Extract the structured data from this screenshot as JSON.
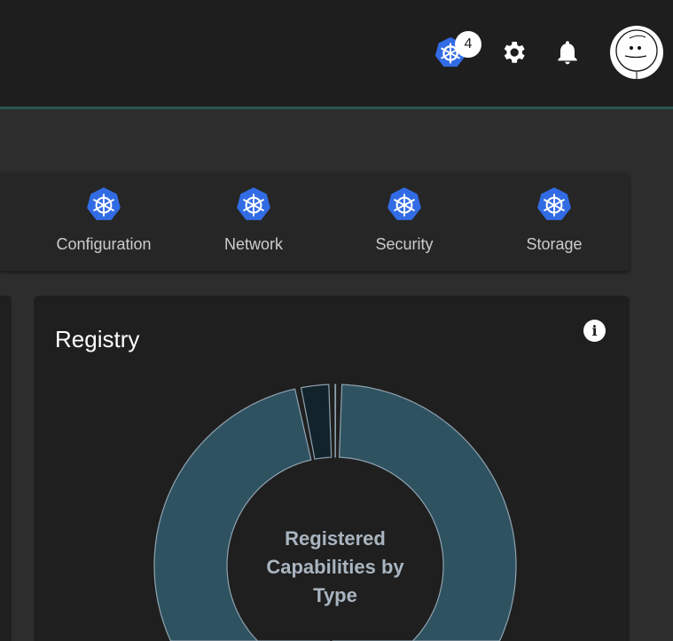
{
  "header": {
    "notification_count": "4",
    "icons": [
      "kubernetes-icon",
      "gear-icon",
      "bell-icon",
      "avatar"
    ]
  },
  "tabs": [
    {
      "label": "Configuration"
    },
    {
      "label": "Network"
    },
    {
      "label": "Security"
    },
    {
      "label": "Storage"
    }
  ],
  "card": {
    "title": "Registry",
    "info_icon": "info-icon"
  },
  "chart_data": {
    "type": "pie",
    "variant": "donut",
    "center_label": "Registered Capabilities by Type",
    "segments": [
      {
        "value": 50,
        "color": "#2f5261"
      },
      {
        "value": 46,
        "color": "#2f5261"
      },
      {
        "value": 3,
        "color": "#13232b"
      },
      {
        "value": 0.6,
        "color": "#4f7a90"
      }
    ]
  },
  "colors": {
    "accent": "#326ce5",
    "header_line": "#2a5550"
  }
}
